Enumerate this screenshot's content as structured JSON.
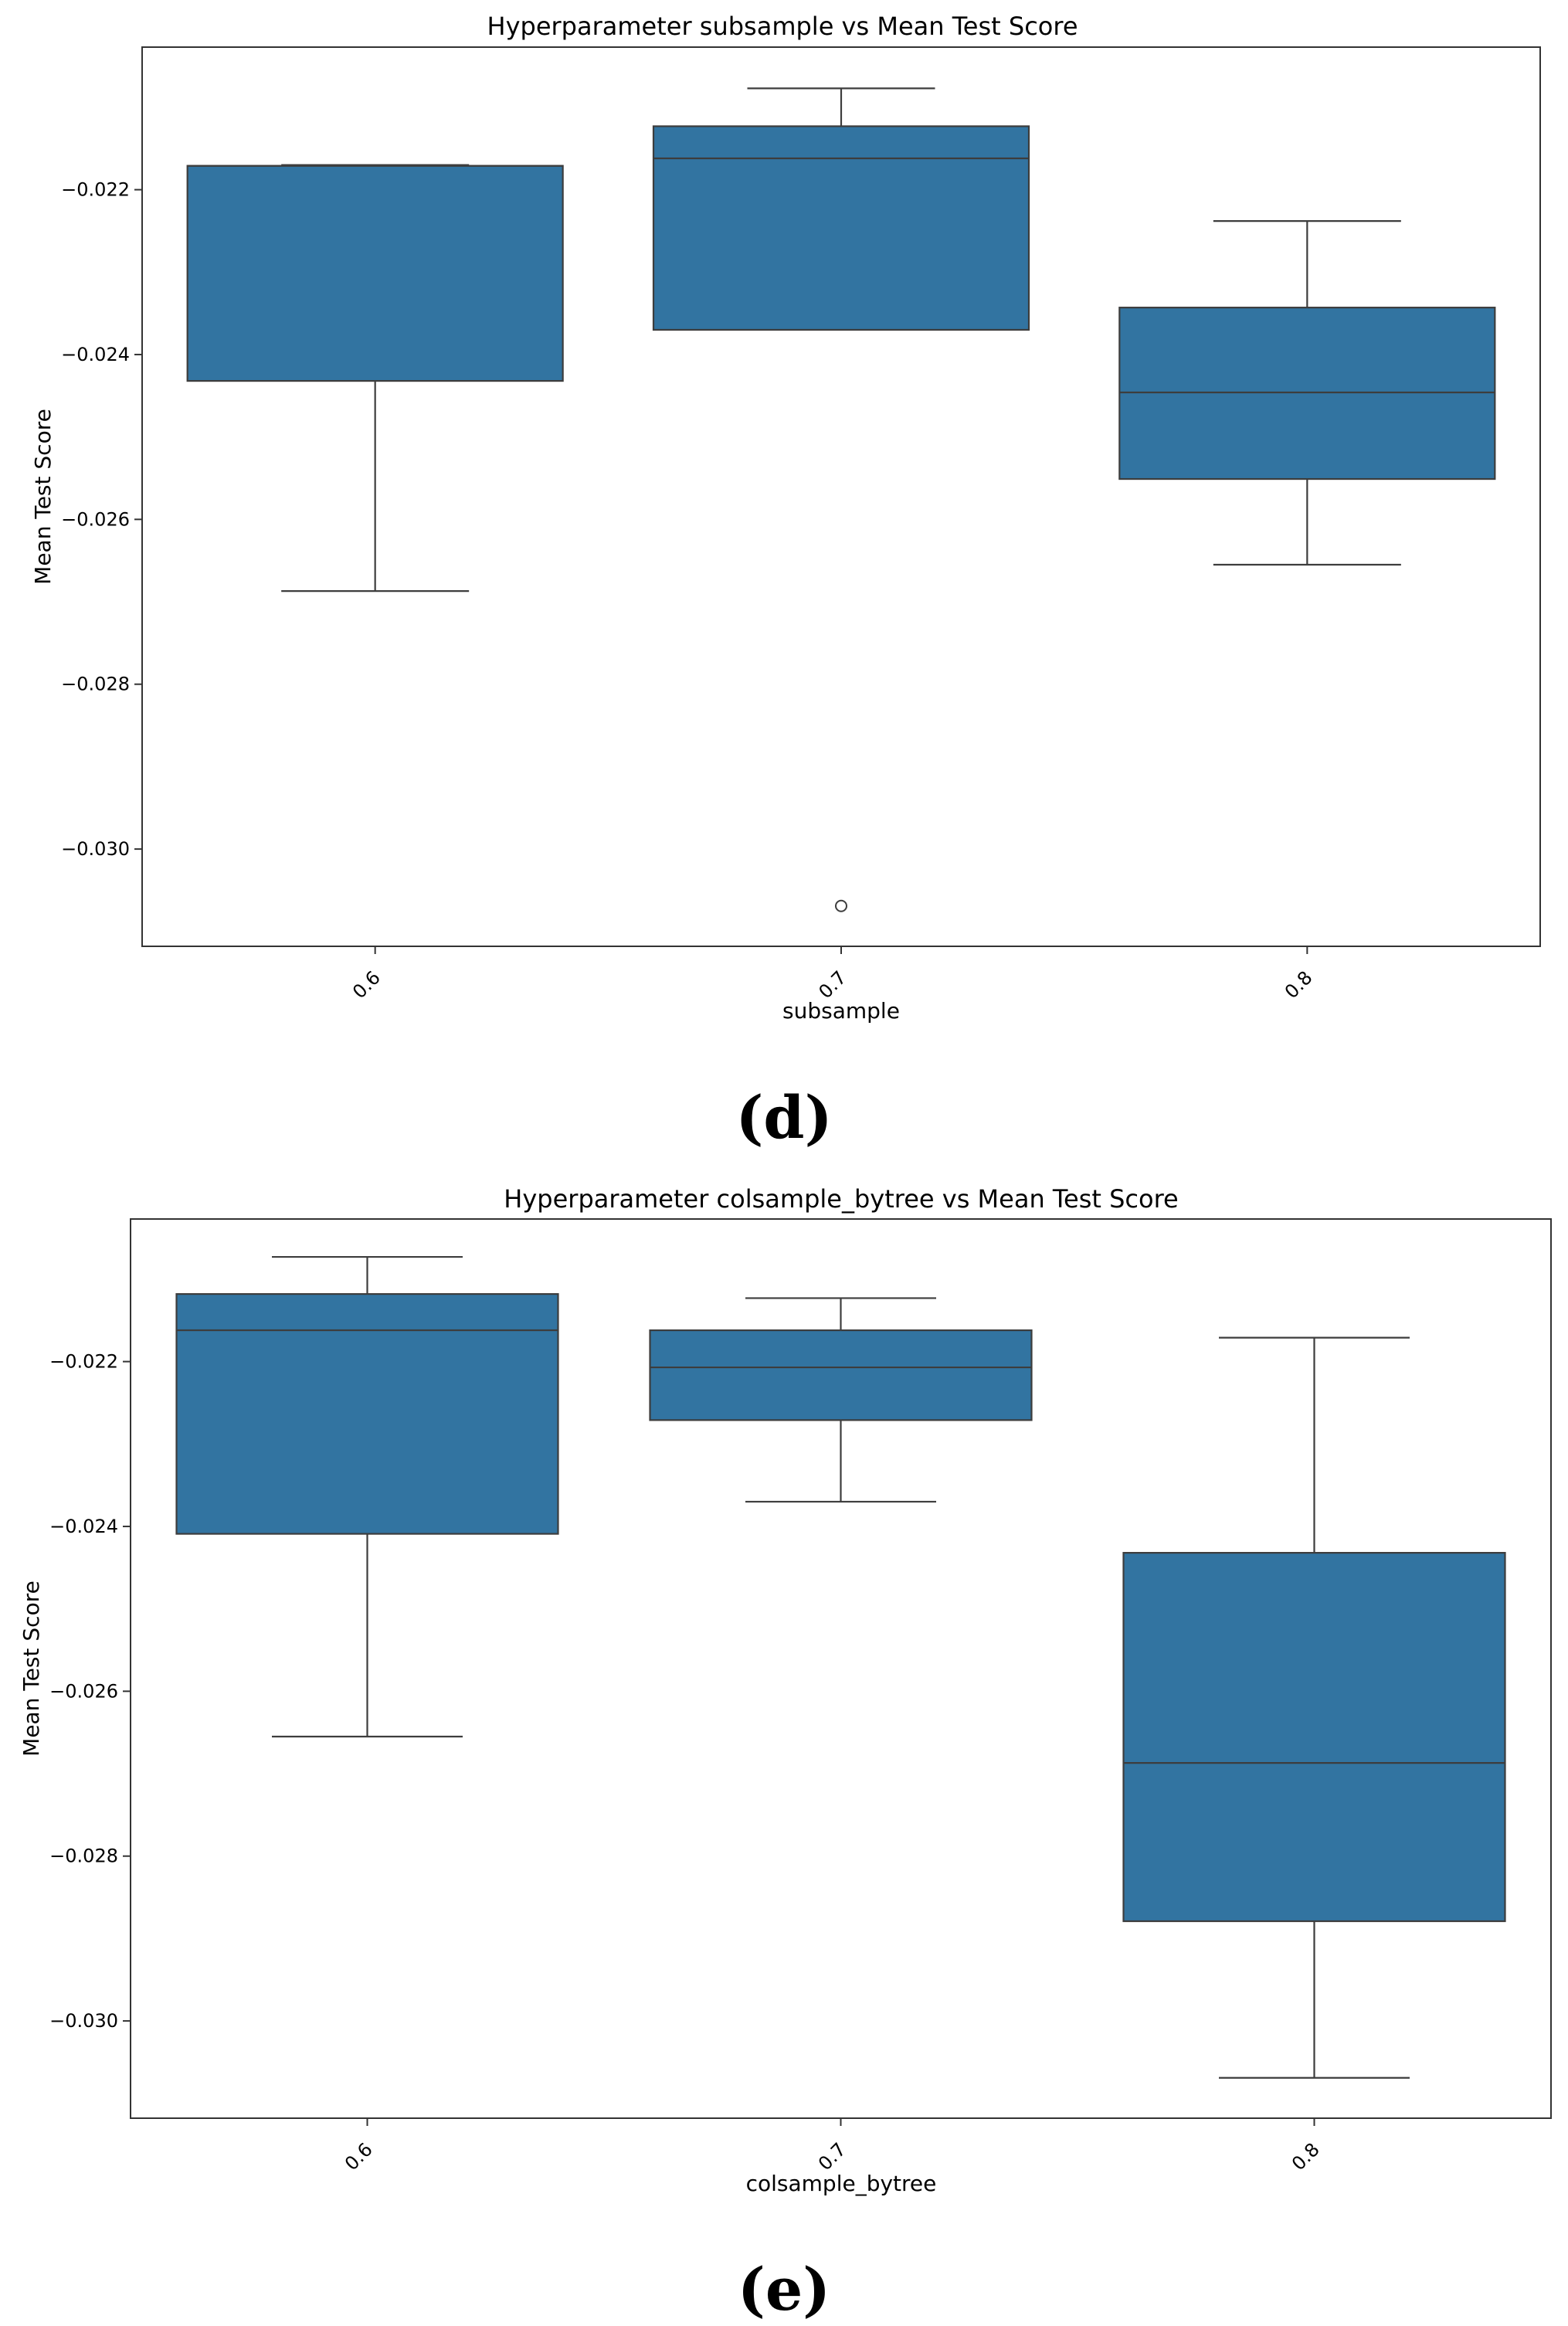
{
  "chart_data": [
    {
      "type": "box",
      "panel_label": "(d)",
      "title": "Hyperparameter subsample vs Mean Test Score",
      "xlabel": "subsample",
      "ylabel": "Mean Test Score",
      "categories": [
        "0.6",
        "0.7",
        "0.8"
      ],
      "yticks": [
        "−0.030",
        "−0.028",
        "−0.026",
        "−0.024",
        "−0.022"
      ],
      "ylim": [
        -0.03118,
        -0.02027
      ],
      "box_color": "#3274a1",
      "boxes": [
        {
          "category": "0.6",
          "whisker_low": -0.02687,
          "q1": -0.02432,
          "median": -0.02171,
          "q3": -0.02171,
          "whisker_high": -0.0217,
          "outliers": []
        },
        {
          "category": "0.7",
          "whisker_low": -0.0237,
          "q1": -0.0237,
          "median": -0.02162,
          "q3": -0.02123,
          "whisker_high": -0.02077,
          "outliers": [
            -0.03069
          ]
        },
        {
          "category": "0.8",
          "whisker_low": -0.02655,
          "q1": -0.02551,
          "median": -0.02446,
          "q3": -0.02343,
          "whisker_high": -0.02238,
          "outliers": []
        }
      ]
    },
    {
      "type": "box",
      "panel_label": "(e)",
      "title": "Hyperparameter colsample_bytree vs Mean Test Score",
      "xlabel": "colsample_bytree",
      "ylabel": "Mean Test Score",
      "categories": [
        "0.6",
        "0.7",
        "0.8"
      ],
      "yticks": [
        "−0.030",
        "−0.028",
        "−0.026",
        "−0.024",
        "−0.022"
      ],
      "ylim": [
        -0.03118,
        -0.02027
      ],
      "box_color": "#3274a1",
      "boxes": [
        {
          "category": "0.6",
          "whisker_low": -0.02655,
          "q1": -0.02409,
          "median": -0.02162,
          "q3": -0.02118,
          "whisker_high": -0.02073,
          "outliers": []
        },
        {
          "category": "0.7",
          "whisker_low": -0.0237,
          "q1": -0.02271,
          "median": -0.02207,
          "q3": -0.02162,
          "whisker_high": -0.02123,
          "outliers": []
        },
        {
          "category": "0.8",
          "whisker_low": -0.03069,
          "q1": -0.02879,
          "median": -0.02687,
          "q3": -0.02432,
          "whisker_high": -0.02171,
          "outliers": []
        }
      ]
    }
  ]
}
